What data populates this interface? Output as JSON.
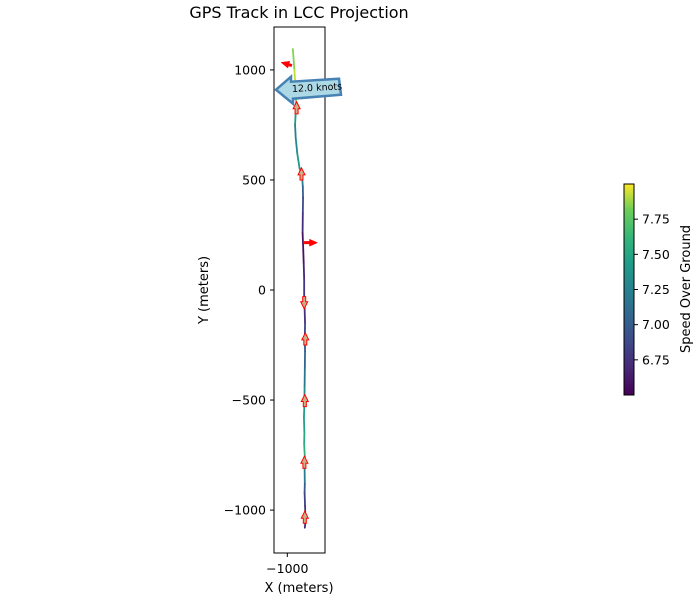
{
  "chart_data": {
    "type": "line",
    "title": "GPS Track in LCC Projection",
    "xlabel": "X (meters)",
    "ylabel": "Y (meters)",
    "xlim": [
      -1060,
      -830
    ],
    "ylim": [
      -1195,
      1195
    ],
    "xticks": [
      -1000
    ],
    "yticks": [
      1000,
      500,
      0,
      -500,
      -1000
    ],
    "xtick_labels": [
      "−1000"
    ],
    "ytick_labels": [
      "1000",
      "500",
      "0",
      "−500",
      "−1000"
    ],
    "track": {
      "x": [
        -975,
        -968,
        -962,
        -960,
        -963,
        -965,
        -962,
        -955,
        -945,
        -933,
        -930,
        -929,
        -930,
        -931,
        -928,
        -926,
        -924,
        -924,
        -922,
        -920,
        -921,
        -920,
        -921,
        -922,
        -923,
        -925,
        -923,
        -924,
        -921,
        -922,
        -921,
        -922,
        -920,
        -919,
        -919,
        -921
      ],
      "y": [
        1095,
        1000,
        900,
        835,
        790,
        750,
        690,
        620,
        555,
        510,
        470,
        420,
        350,
        260,
        180,
        120,
        50,
        -20,
        -80,
        -150,
        -220,
        -280,
        -360,
        -440,
        -520,
        -580,
        -650,
        -700,
        -760,
        -810,
        -880,
        -920,
        -980,
        -1020,
        -1060,
        -1080
      ],
      "speed": [
        7.8,
        7.9,
        7.95,
        7.7,
        7.5,
        7.3,
        7.2,
        7.4,
        7.4,
        7.35,
        7.1,
        6.95,
        6.8,
        6.65,
        6.55,
        6.6,
        6.75,
        6.8,
        6.7,
        6.8,
        6.9,
        7.0,
        7.1,
        7.25,
        7.4,
        7.5,
        7.45,
        7.6,
        7.55,
        7.35,
        7.1,
        6.9,
        6.8,
        6.75,
        6.7,
        6.7
      ]
    },
    "heading_arrows": [
      {
        "x": -958,
        "y": 800,
        "dx": 0,
        "dy": 55
      },
      {
        "x": -936,
        "y": 500,
        "dx": 0,
        "dy": 55
      },
      {
        "x": -924,
        "y": -30,
        "dx": 0,
        "dy": -55
      },
      {
        "x": -919,
        "y": -250,
        "dx": 0,
        "dy": 55
      },
      {
        "x": -921,
        "y": -530,
        "dx": 0,
        "dy": 55
      },
      {
        "x": -923,
        "y": -810,
        "dx": 0,
        "dy": 55
      },
      {
        "x": -921,
        "y": -1060,
        "dx": 0,
        "dy": 55
      }
    ],
    "wind_arrows": [
      {
        "x": -980,
        "y": 1020,
        "dx": -48,
        "dy": 14
      },
      {
        "x": -924,
        "y": 215,
        "dx": 60,
        "dy": 0
      }
    ],
    "callout": {
      "text": "12.0 knots",
      "x": -1060,
      "y": 910
    },
    "colorbar": {
      "label": "Speed Over Ground",
      "min": 6.5,
      "max": 8.0,
      "ticks": [
        6.75,
        7.0,
        7.25,
        7.5,
        7.75
      ],
      "tick_labels": [
        "6.75",
        "7.00",
        "7.25",
        "7.50",
        "7.75"
      ],
      "colormap": "viridis"
    },
    "colors": {
      "heading_arrow_fill": "#c8b28a",
      "heading_arrow_edge": "#ff0000",
      "wind_arrow": "#ff0000",
      "callout_fill": "#add8e6",
      "callout_edge": "#4682b4"
    }
  }
}
